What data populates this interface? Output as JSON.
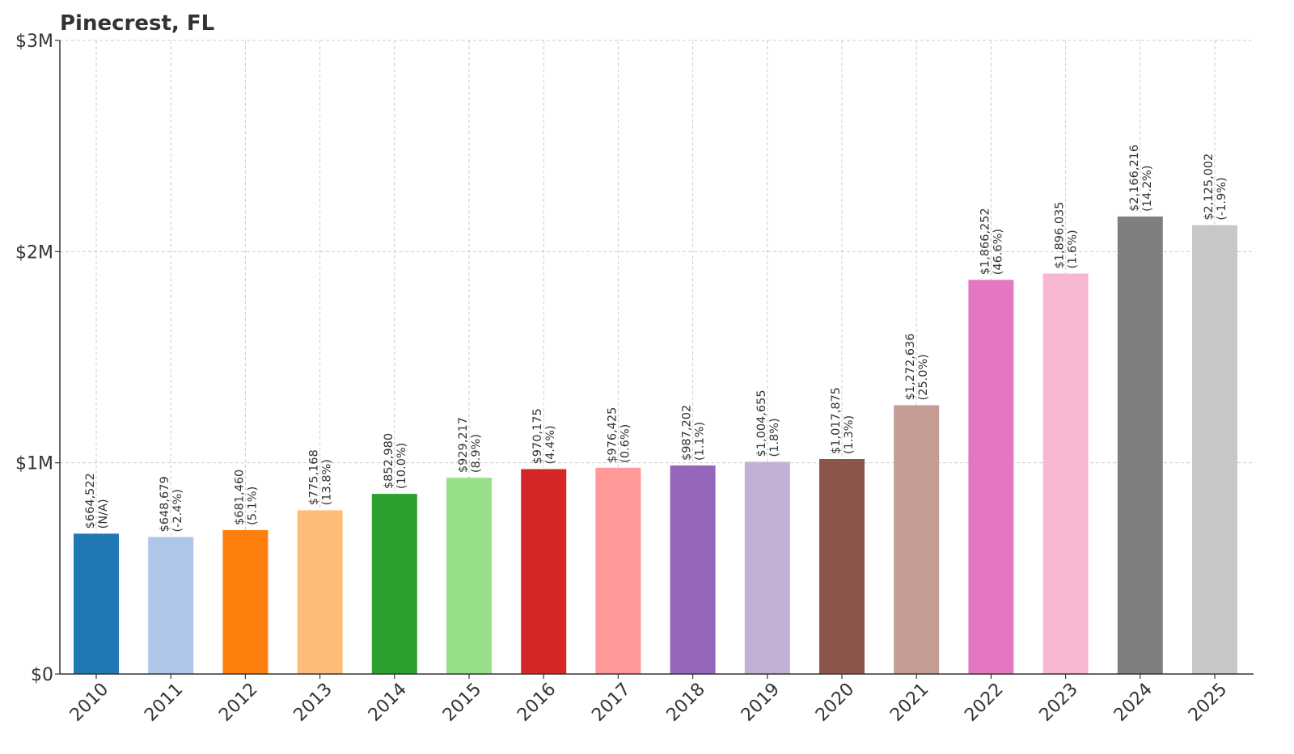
{
  "chart_data": {
    "type": "bar",
    "title": "Pinecrest, FL",
    "xlabel": "",
    "ylabel": "",
    "ylim": [
      0,
      3000000
    ],
    "yticks": [
      {
        "value": 0,
        "label": "$0"
      },
      {
        "value": 1000000,
        "label": "$1M"
      },
      {
        "value": 2000000,
        "label": "$2M"
      },
      {
        "value": 3000000,
        "label": "$3M"
      }
    ],
    "grid": true,
    "categories": [
      "2010",
      "2011",
      "2012",
      "2013",
      "2014",
      "2015",
      "2016",
      "2017",
      "2018",
      "2019",
      "2020",
      "2021",
      "2022",
      "2023",
      "2024",
      "2025"
    ],
    "values": [
      664522,
      648679,
      681460,
      775168,
      852980,
      929217,
      970175,
      976425,
      987202,
      1004655,
      1017875,
      1272636,
      1866252,
      1896035,
      2166216,
      2125002
    ],
    "value_labels": [
      "$664,522",
      "$648,679",
      "$681,460",
      "$775,168",
      "$852,980",
      "$929,217",
      "$970,175",
      "$976,425",
      "$987,202",
      "$1,004,655",
      "$1,017,875",
      "$1,272,636",
      "$1,866,252",
      "$1,896,035",
      "$2,166,216",
      "$2,125,002"
    ],
    "change_labels": [
      "(N/A)",
      "(-2.4%)",
      "(5.1%)",
      "(13.8%)",
      "(10.0%)",
      "(8.9%)",
      "(4.4%)",
      "(0.6%)",
      "(1.1%)",
      "(1.8%)",
      "(1.3%)",
      "(25.0%)",
      "(46.6%)",
      "(1.6%)",
      "(14.2%)",
      "(-1.9%)"
    ],
    "colors": [
      "#1f77b4",
      "#aec7e8",
      "#ff7f0e",
      "#ffbb78",
      "#2ca02c",
      "#98df8a",
      "#d62728",
      "#ff9896",
      "#9467bd",
      "#c5b0d5",
      "#8c564b",
      "#c49c94",
      "#e377c2",
      "#f7b6d2",
      "#7f7f7f",
      "#c7c7c7"
    ]
  }
}
